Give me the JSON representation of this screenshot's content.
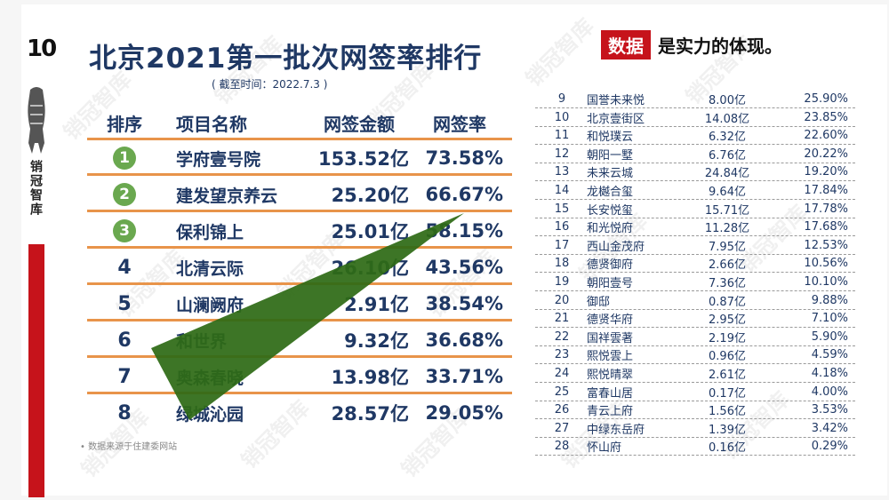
{
  "page_number": "10",
  "brand_vertical": "销冠智库",
  "title": "北京2021第一批次网签率排行",
  "subtitle": "( 截至时间：2022.7.3 )",
  "slogan": {
    "highlight": "数据",
    "rest": "是实力的体现。"
  },
  "main_table": {
    "headers": {
      "rank": "排序",
      "name": "项目名称",
      "amount": "网签金额",
      "rate": "网签率"
    },
    "rows": [
      {
        "rank": "1",
        "name": "学府壹号院",
        "amount": "153.52亿",
        "rate": "73.58%",
        "badge": true
      },
      {
        "rank": "2",
        "name": "建发望京养云",
        "amount": "25.20亿",
        "rate": "66.67%",
        "badge": true
      },
      {
        "rank": "3",
        "name": "保利锦上",
        "amount": "25.01亿",
        "rate": "58.15%",
        "badge": true
      },
      {
        "rank": "4",
        "name": "北清云际",
        "amount": "26.10亿",
        "rate": "43.56%",
        "badge": false
      },
      {
        "rank": "5",
        "name": "山澜阙府",
        "amount": "2.91亿",
        "rate": "38.54%",
        "badge": false
      },
      {
        "rank": "6",
        "name": "和世界",
        "amount": "9.32亿",
        "rate": "36.68%",
        "badge": false
      },
      {
        "rank": "7",
        "name": "奥森春晓",
        "amount": "13.98亿",
        "rate": "33.71%",
        "badge": false
      },
      {
        "rank": "8",
        "name": "绿城沁园",
        "amount": "28.57亿",
        "rate": "29.05%",
        "badge": false
      }
    ]
  },
  "source_note": "•    数据来源于住建委网站",
  "side_table": {
    "rows": [
      {
        "rank": "9",
        "name": "国誉未来悦",
        "amount": "8.00亿",
        "rate": "25.90%"
      },
      {
        "rank": "10",
        "name": "北京壹街区",
        "amount": "14.08亿",
        "rate": "23.85%"
      },
      {
        "rank": "11",
        "name": "和悦璞云",
        "amount": "6.32亿",
        "rate": "22.60%"
      },
      {
        "rank": "12",
        "name": "朝阳一墅",
        "amount": "6.76亿",
        "rate": "20.22%"
      },
      {
        "rank": "13",
        "name": "未来云城",
        "amount": "24.84亿",
        "rate": "19.20%"
      },
      {
        "rank": "14",
        "name": "龙樾合玺",
        "amount": "9.64亿",
        "rate": "17.84%"
      },
      {
        "rank": "15",
        "name": "长安悦玺",
        "amount": "15.71亿",
        "rate": "17.78%"
      },
      {
        "rank": "16",
        "name": "和光悦府",
        "amount": "11.28亿",
        "rate": "17.68%"
      },
      {
        "rank": "17",
        "name": "西山金茂府",
        "amount": "7.95亿",
        "rate": "12.53%"
      },
      {
        "rank": "18",
        "name": "德贤御府",
        "amount": "2.66亿",
        "rate": "10.56%"
      },
      {
        "rank": "19",
        "name": "朝阳壹号",
        "amount": "7.36亿",
        "rate": "10.10%"
      },
      {
        "rank": "20",
        "name": "御邸",
        "amount": "0.87亿",
        "rate": "9.88%"
      },
      {
        "rank": "21",
        "name": "德贤华府",
        "amount": "2.95亿",
        "rate": "7.10%"
      },
      {
        "rank": "22",
        "name": "国祥雲著",
        "amount": "2.19亿",
        "rate": "5.90%"
      },
      {
        "rank": "23",
        "name": "熙悦雲上",
        "amount": "0.96亿",
        "rate": "4.59%"
      },
      {
        "rank": "24",
        "name": "熙悦晴翠",
        "amount": "2.61亿",
        "rate": "4.18%"
      },
      {
        "rank": "25",
        "name": "富春山居",
        "amount": "0.17亿",
        "rate": "4.00%"
      },
      {
        "rank": "26",
        "name": "青云上府",
        "amount": "1.56亿",
        "rate": "3.53%"
      },
      {
        "rank": "27",
        "name": "中绿东岳府",
        "amount": "1.39亿",
        "rate": "3.42%"
      },
      {
        "rank": "28",
        "name": "怀山府",
        "amount": "0.16亿",
        "rate": "0.29%"
      }
    ]
  },
  "watermark_text": "销冠智库",
  "colors": {
    "navy": "#1f3864",
    "brand_red": "#c6131b",
    "rule_orange": "#e8944a",
    "badge_green": "#6aa84f",
    "triangle_green": "#2e6b16"
  }
}
